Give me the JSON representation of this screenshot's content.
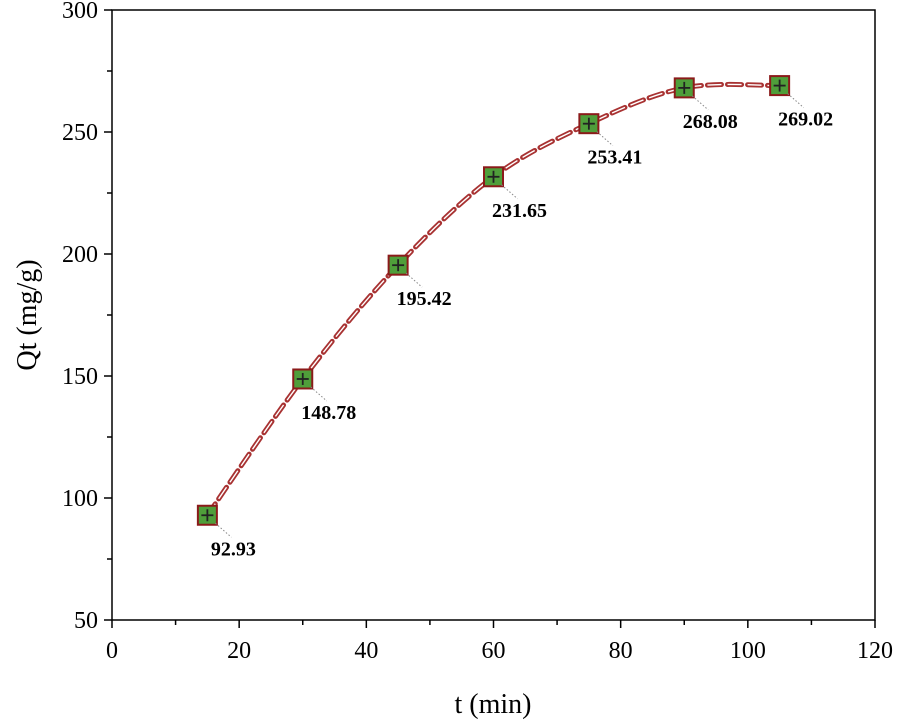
{
  "chart_data": {
    "type": "line",
    "title": "",
    "xlabel": "t (min)",
    "ylabel": "Qt (mg/g)",
    "xlim": [
      0,
      120
    ],
    "ylim": [
      50,
      300
    ],
    "xticks": [
      0,
      20,
      40,
      60,
      80,
      100,
      120
    ],
    "yticks": [
      50,
      100,
      150,
      200,
      250,
      300
    ],
    "xtick_labels": [
      "0",
      "20",
      "40",
      "60",
      "80",
      "100",
      "120"
    ],
    "ytick_labels": [
      "50",
      "100",
      "150",
      "200",
      "250",
      "300"
    ],
    "grid": false,
    "series": [
      {
        "name": "Qt",
        "x": [
          15,
          30,
          45,
          60,
          75,
          90,
          105
        ],
        "values": [
          92.93,
          148.78,
          195.42,
          231.65,
          253.41,
          268.08,
          269.02
        ],
        "labels": [
          "92.93",
          "148.78",
          "195.42",
          "231.65",
          "253.41",
          "268.08",
          "269.02"
        ],
        "line_style": "dashed",
        "marker": "square"
      }
    ]
  },
  "colors": {
    "line": "#a83232",
    "marker_fill": "#4f9e3a",
    "marker_edge": "#8b1a1a",
    "axis": "#000000"
  }
}
